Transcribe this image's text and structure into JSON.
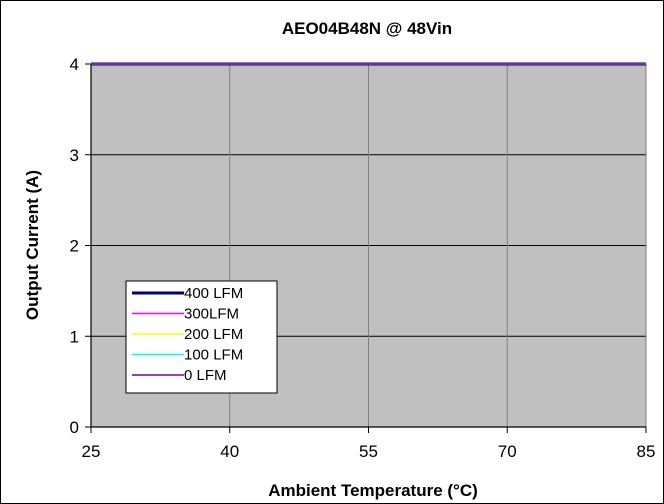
{
  "chart_data": {
    "type": "line",
    "title": "AEO04B48N @ 48Vin",
    "xlabel": "Ambient Temperature (°C)",
    "ylabel": "Output Current (A)",
    "xlim": [
      25,
      85
    ],
    "ylim": [
      0,
      4
    ],
    "x_ticks": [
      "25",
      "40",
      "55",
      "70",
      "85"
    ],
    "y_ticks": [
      "0",
      "1",
      "2",
      "3",
      "4"
    ],
    "grid": true,
    "plot_background": "#c0c0c0",
    "legend_position": "bottom-left",
    "series": [
      {
        "name": "400 LFM",
        "color": "#000080",
        "x": [
          25,
          85
        ],
        "y": [
          4,
          4
        ]
      },
      {
        "name": "300LFM",
        "color": "#ff00ff",
        "x": [
          25,
          85
        ],
        "y": [
          4,
          4
        ]
      },
      {
        "name": "200 LFM",
        "color": "#ffff00",
        "x": [
          25,
          85
        ],
        "y": [
          4,
          4
        ]
      },
      {
        "name": "100 LFM",
        "color": "#00ffff",
        "x": [
          25,
          85
        ],
        "y": [
          4,
          4
        ]
      },
      {
        "name": "0 LFM",
        "color": "#800080",
        "x": [
          25,
          85
        ],
        "y": [
          4,
          4
        ]
      }
    ]
  }
}
